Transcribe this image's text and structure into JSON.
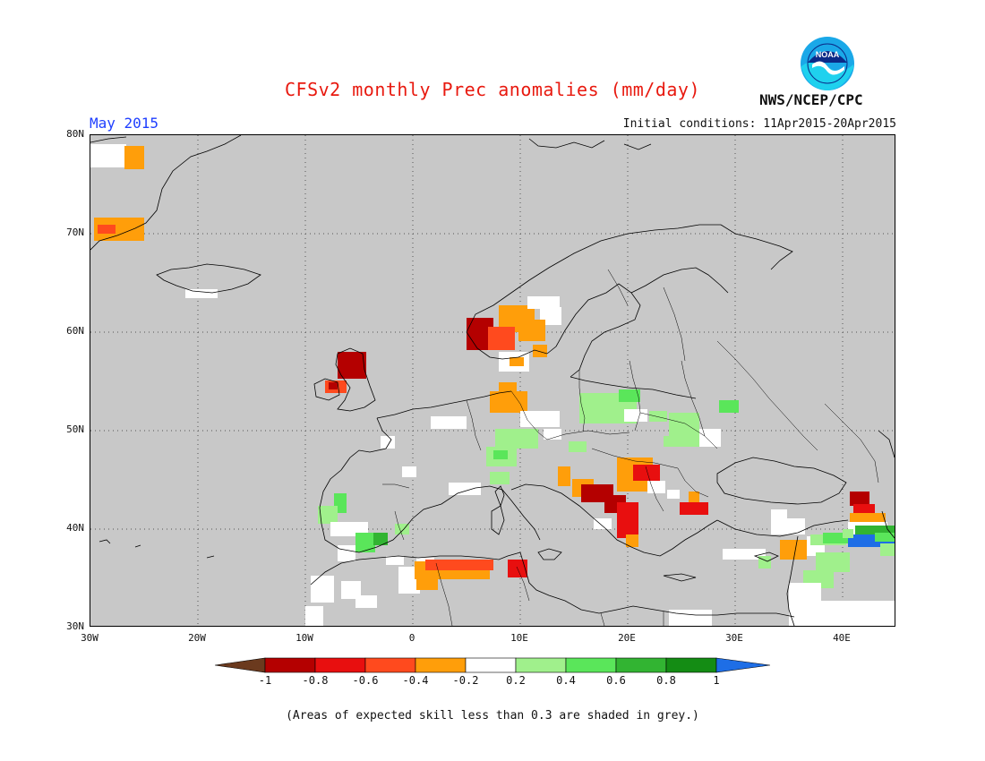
{
  "title": "CFSv2 monthly Prec anomalies (mm/day)",
  "month": "May 2015",
  "initial_conditions": "Initial conditions: 11Apr2015-20Apr2015",
  "agency": "NWS/NCEP/CPC",
  "logo": {
    "text": "NOAA",
    "icon": "noaa-logo-icon"
  },
  "map": {
    "background_color": "#c8c8c8",
    "lat_labels": [
      "80N",
      "70N",
      "60N",
      "50N",
      "40N",
      "30N"
    ],
    "lon_labels": [
      "30W",
      "20W",
      "10W",
      "0",
      "10E",
      "20E",
      "30E",
      "40E"
    ],
    "lat_range": [
      30,
      80
    ],
    "lon_range": [
      -30,
      45
    ],
    "gridlines": "dotted"
  },
  "colorbar": {
    "tick_labels": [
      "-1",
      "-0.8",
      "-0.6",
      "-0.4",
      "-0.2",
      "0.2",
      "0.4",
      "0.6",
      "0.8",
      "1"
    ],
    "colors": [
      "#6b3a1e",
      "#b40000",
      "#e80f0f",
      "#ff4a1e",
      "#ff9e0a",
      "#ffffff",
      "#a0f08c",
      "#5ae65a",
      "#32b432",
      "#148c14",
      "#1e6ee6"
    ]
  },
  "footnote": "(Areas of expected skill less than 0.3 are shaded in grey.)"
}
